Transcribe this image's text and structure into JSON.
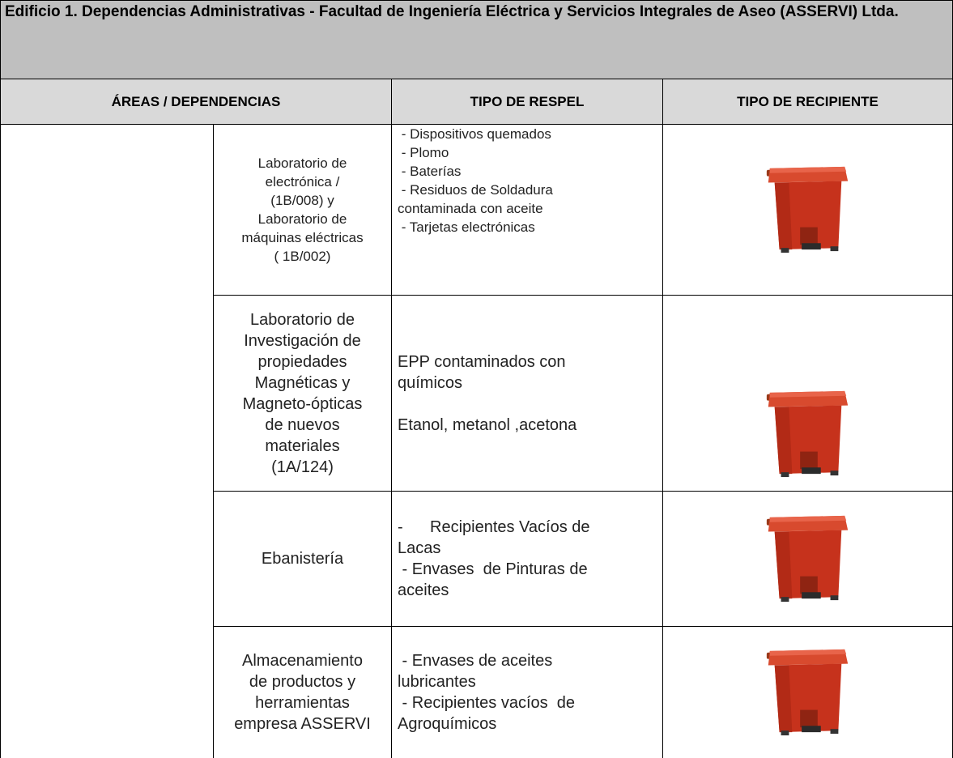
{
  "title": "Edificio 1. Dependencias Administrativas - Facultad de Ingeniería Eléctrica y Servicios Integrales de Aseo (ASSERVI) Ltda.",
  "header": [
    "ÁREAS / DEPENDENCIAS",
    "TIPO DE RESPEL",
    "TIPO DE RECIPIENTE"
  ],
  "rows": [
    {
      "area": [
        "Laboratorio de",
        "electrónica /",
        "(1B/008) y",
        "Laboratorio de",
        "máquinas eléctricas",
        "( 1B/002)"
      ],
      "respel": [
        [
          " - Dispositivos quemados",
          " - Plomo",
          " - Baterías",
          " - Residuos de Soldadura",
          "contaminada con aceite",
          " - Tarjetas electrónicas"
        ]
      ]
    },
    {
      "area": [
        "Laboratorio de",
        "Investigación de",
        "propiedades",
        "Magnéticas y",
        "Magneto-ópticas",
        "de nuevos",
        "materiales",
        "(1A/124)"
      ],
      "respel": [
        [
          "EPP contaminados con",
          "químicos"
        ],
        [
          "Etanol, metanol ,acetona"
        ]
      ]
    },
    {
      "area": [
        "Ebanistería"
      ],
      "respel": [
        [
          "-      Recipientes Vacíos de",
          "Lacas",
          " - Envases  de Pinturas de",
          "aceites"
        ]
      ]
    },
    {
      "area": [
        "Almacenamiento",
        "de productos y",
        "herramientas",
        "empresa ASSERVI"
      ],
      "respel": [
        [
          " - Envases de aceites",
          "lubricantes",
          " - Recipientes vacíos  de",
          "Agroquímicos"
        ]
      ]
    }
  ]
}
